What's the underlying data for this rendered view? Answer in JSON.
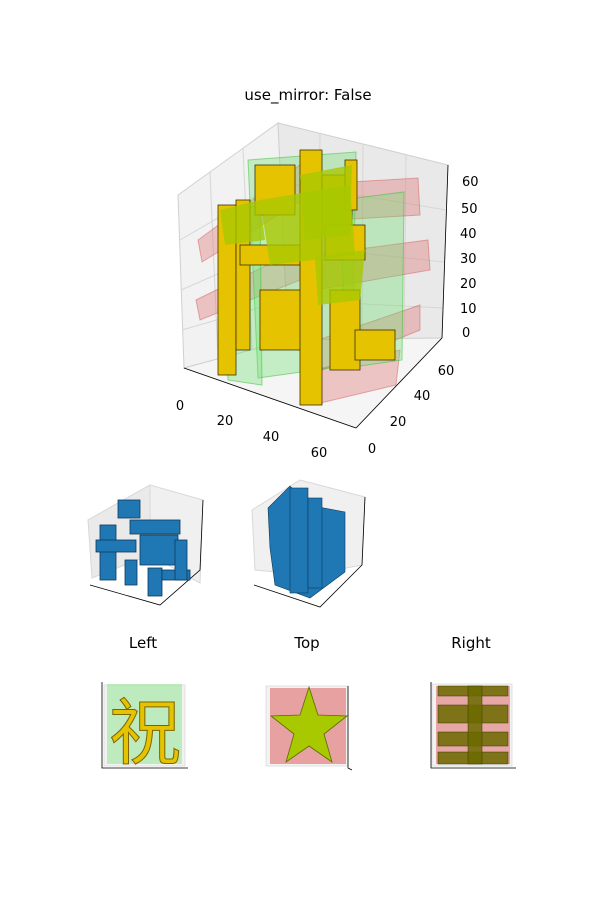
{
  "chart_data": [
    {
      "type": "3d-voxel",
      "title": "use_mirror: False",
      "x_ticks": [
        "0",
        "20",
        "40",
        "60"
      ],
      "y_ticks": [
        "0",
        "20",
        "40",
        "60"
      ],
      "z_ticks": [
        "0",
        "10",
        "20",
        "30",
        "40",
        "50",
        "60"
      ],
      "xlim": [
        0,
        64
      ],
      "ylim": [
        0,
        64
      ],
      "zlim": [
        0,
        64
      ],
      "grid": true,
      "colors": {
        "voxel": "#e6c300",
        "front_projection": "#6ee06e",
        "side_projection": "#e06a6a",
        "top_projection": "#a8c800"
      }
    },
    {
      "type": "3d-voxel",
      "title": "",
      "colors": {
        "voxel": "#1f77b4"
      }
    },
    {
      "type": "3d-voxel",
      "title": "",
      "colors": {
        "voxel": "#1f77b4"
      }
    },
    {
      "type": "3d-voxel",
      "title": "Left",
      "glyph": "祝",
      "colors": {
        "voxel": "#e6c300",
        "projection": "#6ee06e"
      }
    },
    {
      "type": "3d-voxel",
      "title": "Top",
      "colors": {
        "voxel": "#a8c800",
        "projection": "#e06a6a"
      }
    },
    {
      "type": "3d-voxel",
      "title": "Right",
      "colors": {
        "voxel": "#7a6a00",
        "projection": "#e06a6a"
      }
    }
  ]
}
